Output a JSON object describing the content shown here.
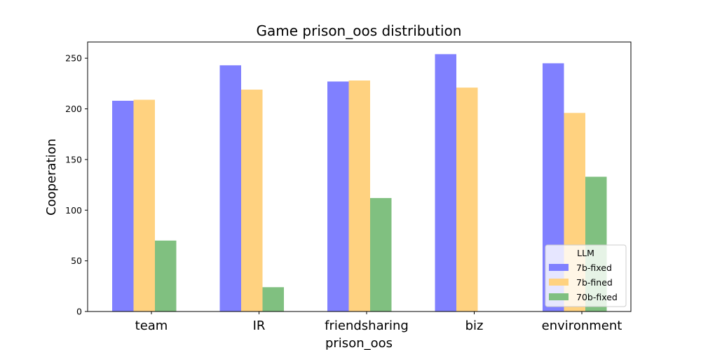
{
  "chart_data": {
    "type": "bar",
    "title": "Game prison_oos distribution",
    "xlabel": "prison_oos",
    "ylabel": "Cooperation",
    "categories": [
      "team",
      "IR",
      "friendsharing",
      "biz",
      "environment"
    ],
    "series": [
      {
        "name": "7b-fixed",
        "values": [
          208,
          243,
          227,
          254,
          245
        ],
        "color": "#8080ff"
      },
      {
        "name": "7b-fined",
        "values": [
          209,
          219,
          228,
          221,
          196
        ],
        "color": "#ffd280"
      },
      {
        "name": "70b-fixed",
        "values": [
          70,
          24,
          112,
          0,
          133
        ],
        "color": "#80c080"
      }
    ],
    "yticks": [
      0,
      50,
      100,
      150,
      200,
      250
    ],
    "ylim": [
      0,
      266
    ],
    "grid": false,
    "legend": {
      "title": "LLM",
      "placement": "lower-right"
    }
  }
}
